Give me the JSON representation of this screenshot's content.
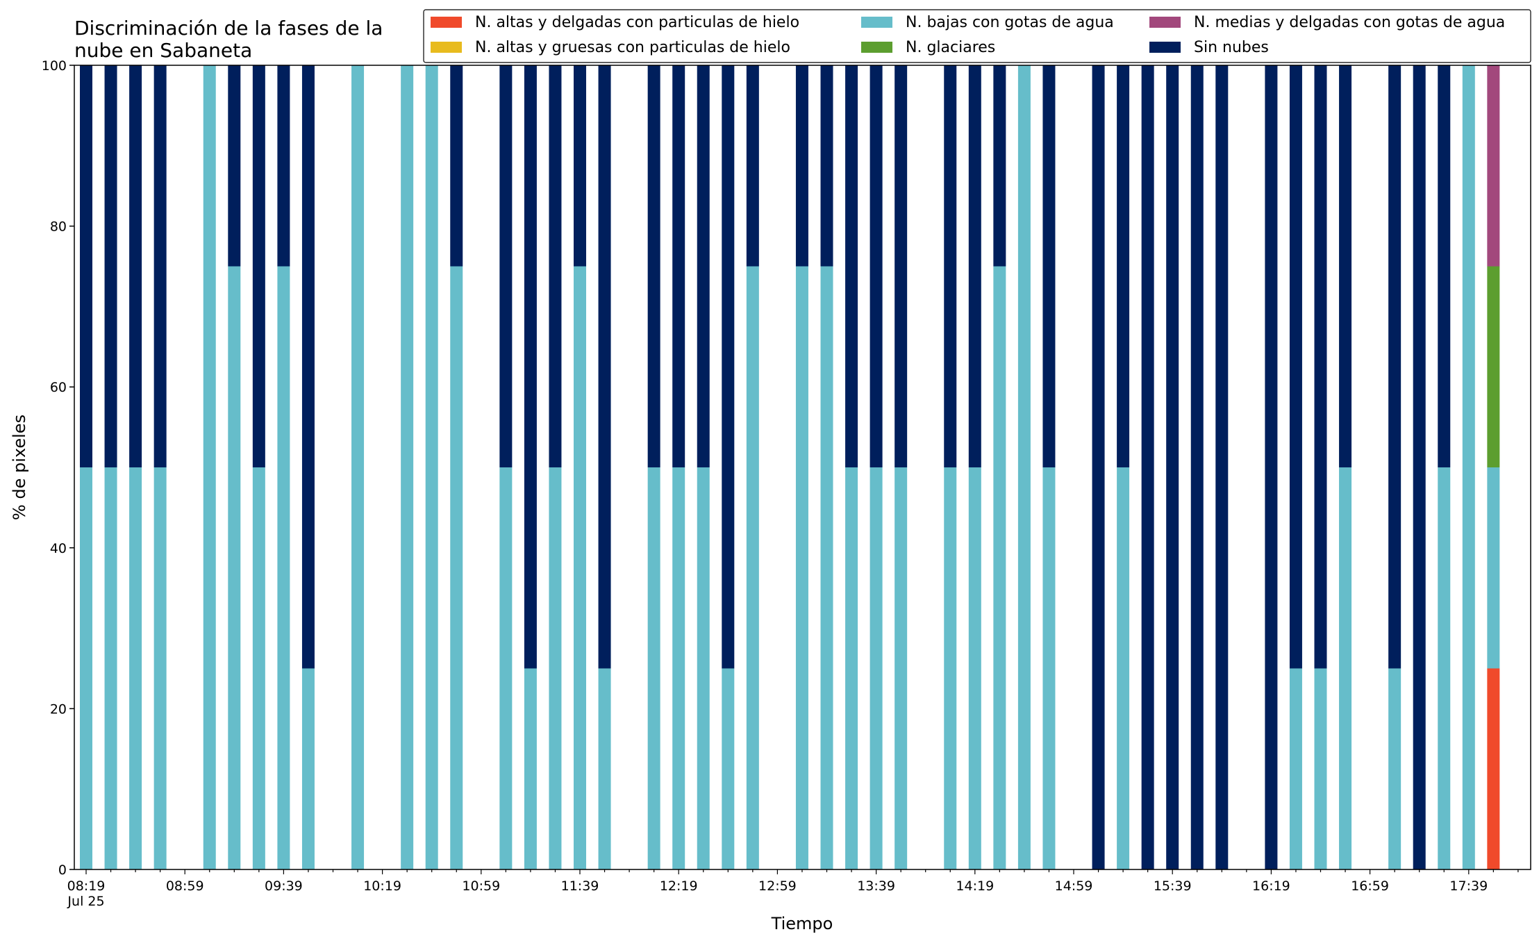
{
  "chart_data": {
    "type": "bar",
    "stacked": true,
    "title": "Discriminación de la fases de la\nnube en Sabaneta",
    "xlabel": "Tiempo",
    "ylabel": "% de pixeles",
    "ylim": [
      0,
      100
    ],
    "yticks": [
      0,
      20,
      40,
      60,
      80,
      100
    ],
    "xtick_labels": [
      "08:19\nJul 25",
      "08:59",
      "09:39",
      "10:19",
      "10:59",
      "11:39",
      "12:19",
      "12:59",
      "13:39",
      "14:19",
      "14:59",
      "15:39",
      "16:19",
      "16:59",
      "17:39"
    ],
    "grid": false,
    "legend_position": "top-right",
    "categories": [
      "08:19",
      "08:29",
      "08:39",
      "08:49",
      "08:59",
      "09:09",
      "09:19",
      "09:29",
      "09:39",
      "09:49",
      "09:59",
      "10:09",
      "10:19",
      "10:29",
      "10:39",
      "10:49",
      "10:59",
      "11:09",
      "11:19",
      "11:29",
      "11:39",
      "11:49",
      "11:59",
      "12:09",
      "12:19",
      "12:29",
      "12:39",
      "12:49",
      "12:59",
      "13:09",
      "13:19",
      "13:29",
      "13:39",
      "13:49",
      "13:59",
      "14:09",
      "14:19",
      "14:29",
      "14:39",
      "14:49",
      "14:59",
      "15:09",
      "15:19",
      "15:29",
      "15:39",
      "15:49",
      "15:59",
      "16:09",
      "16:19",
      "16:29",
      "16:39",
      "16:49",
      "16:59",
      "17:09",
      "17:19",
      "17:29",
      "17:39",
      "17:49"
    ],
    "series": [
      {
        "name": "N. altas y delgadas con particulas de hielo",
        "color": "#F04A2B",
        "values": [
          0,
          0,
          0,
          0,
          0,
          0,
          0,
          0,
          0,
          0,
          0,
          0,
          0,
          0,
          0,
          0,
          0,
          0,
          0,
          0,
          0,
          0,
          0,
          0,
          0,
          0,
          0,
          0,
          0,
          0,
          0,
          0,
          0,
          0,
          0,
          0,
          0,
          0,
          0,
          0,
          0,
          0,
          0,
          0,
          0,
          0,
          0,
          0,
          0,
          0,
          0,
          0,
          0,
          0,
          0,
          0,
          0,
          25
        ]
      },
      {
        "name": "N. altas y gruesas con particulas de hielo",
        "color": "#E8BB1E",
        "values": [
          0,
          0,
          0,
          0,
          0,
          0,
          0,
          0,
          0,
          0,
          0,
          0,
          0,
          0,
          0,
          0,
          0,
          0,
          0,
          0,
          0,
          0,
          0,
          0,
          0,
          0,
          0,
          0,
          0,
          0,
          0,
          0,
          0,
          0,
          0,
          0,
          0,
          0,
          0,
          0,
          0,
          0,
          0,
          0,
          0,
          0,
          0,
          0,
          0,
          0,
          0,
          0,
          0,
          0,
          0,
          0,
          0,
          0
        ]
      },
      {
        "name": "N. bajas con gotas de agua",
        "color": "#66BDCA",
        "values": [
          50,
          50,
          50,
          50,
          0,
          100,
          75,
          50,
          75,
          25,
          0,
          100,
          0,
          100,
          100,
          75,
          0,
          50,
          25,
          50,
          75,
          25,
          0,
          50,
          50,
          50,
          25,
          75,
          0,
          75,
          75,
          50,
          50,
          50,
          0,
          50,
          50,
          75,
          100,
          50,
          0,
          0,
          50,
          0,
          0,
          0,
          0,
          0,
          0,
          25,
          25,
          50,
          0,
          25,
          0,
          50,
          100,
          25
        ]
      },
      {
        "name": "N. glaciares",
        "color": "#5C9E2F",
        "values": [
          0,
          0,
          0,
          0,
          0,
          0,
          0,
          0,
          0,
          0,
          0,
          0,
          0,
          0,
          0,
          0,
          0,
          0,
          0,
          0,
          0,
          0,
          0,
          0,
          0,
          0,
          0,
          0,
          0,
          0,
          0,
          0,
          0,
          0,
          0,
          0,
          0,
          0,
          0,
          0,
          0,
          0,
          0,
          0,
          0,
          0,
          0,
          0,
          0,
          0,
          0,
          0,
          0,
          0,
          0,
          0,
          0,
          25
        ]
      },
      {
        "name": "N. medias y delgadas con gotas de agua",
        "color": "#A2487C",
        "values": [
          0,
          0,
          0,
          0,
          0,
          0,
          0,
          0,
          0,
          0,
          0,
          0,
          0,
          0,
          0,
          0,
          0,
          0,
          0,
          0,
          0,
          0,
          0,
          0,
          0,
          0,
          0,
          0,
          0,
          0,
          0,
          0,
          0,
          0,
          0,
          0,
          0,
          0,
          0,
          0,
          0,
          0,
          0,
          0,
          0,
          0,
          0,
          0,
          0,
          0,
          0,
          0,
          0,
          0,
          0,
          0,
          0,
          25
        ]
      },
      {
        "name": "Sin nubes",
        "color": "#001F5C",
        "values": [
          50,
          50,
          50,
          50,
          0,
          0,
          25,
          50,
          25,
          75,
          0,
          0,
          0,
          0,
          0,
          25,
          0,
          50,
          75,
          50,
          25,
          75,
          0,
          50,
          50,
          50,
          75,
          25,
          0,
          25,
          25,
          50,
          50,
          50,
          0,
          50,
          50,
          25,
          0,
          50,
          0,
          100,
          50,
          100,
          100,
          100,
          100,
          0,
          100,
          75,
          75,
          50,
          0,
          75,
          100,
          50,
          0,
          0
        ]
      }
    ]
  }
}
